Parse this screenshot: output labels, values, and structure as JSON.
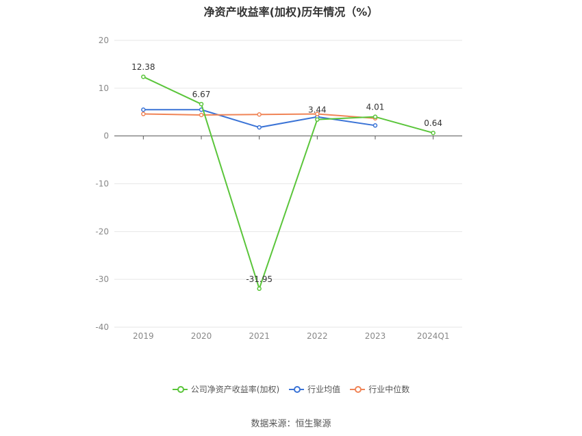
{
  "chart_data": {
    "type": "line",
    "title": "净资产收益率(加权)历年情况（%）",
    "categories": [
      "2019",
      "2020",
      "2021",
      "2022",
      "2023",
      "2024Q1"
    ],
    "ylim": [
      -40,
      20
    ],
    "yticks": [
      20,
      10,
      0,
      -10,
      -20,
      -30,
      -40
    ],
    "grid": true,
    "legend_position": "bottom",
    "series": [
      {
        "name": "公司净资产收益率(加权)",
        "color": "#5ac53a",
        "values": [
          12.38,
          6.67,
          -31.95,
          3.44,
          4.01,
          0.64
        ],
        "labels": [
          "12.38",
          "6.67",
          "-31.95",
          "3.44",
          "4.01",
          "0.64"
        ]
      },
      {
        "name": "行业均值",
        "color": "#3a73d6",
        "values": [
          5.5,
          5.5,
          1.8,
          4.0,
          2.2,
          null
        ]
      },
      {
        "name": "行业中位数",
        "color": "#f08456",
        "values": [
          4.6,
          4.4,
          4.5,
          4.6,
          3.7,
          null
        ]
      }
    ]
  },
  "source": "数据来源：恒生聚源"
}
